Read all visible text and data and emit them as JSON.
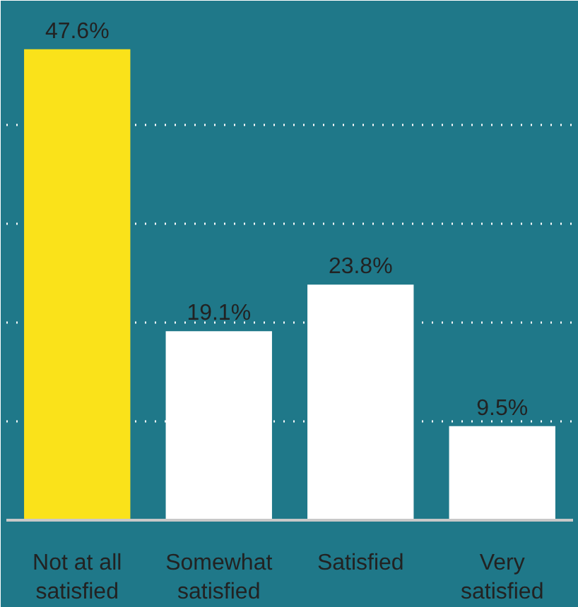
{
  "chart_data": {
    "type": "bar",
    "categories": [
      "Not at all satisfied",
      "Somewhat satisfied",
      "Satisfied",
      "Very satisfied"
    ],
    "values": [
      47.6,
      19.1,
      23.8,
      9.5
    ],
    "colors": [
      "#fae21a",
      "#ffffff",
      "#ffffff",
      "#ffffff"
    ],
    "value_labels": [
      "47.6%",
      "19.1%",
      "23.8%",
      "9.5%"
    ],
    "ylim": [
      0,
      52.5
    ],
    "yticks": [
      {
        "value": 10,
        "label": null
      },
      {
        "value": 20,
        "label": null
      },
      {
        "value": 30,
        "label": null
      },
      {
        "value": 40,
        "label": null
      }
    ],
    "tick_labels": "x",
    "grid": "y"
  }
}
